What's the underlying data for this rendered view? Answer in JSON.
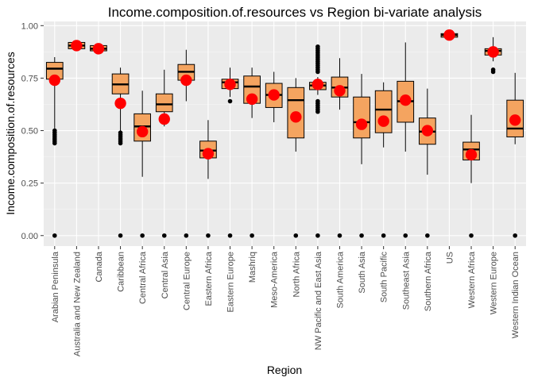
{
  "chart_data": {
    "type": "boxplot",
    "title": "Income.composition.of.resources vs Region bi-variate analysis",
    "xlabel": "Region",
    "ylabel": "Income.composition.of.resources",
    "ylim": [
      -0.05,
      1.02
    ],
    "yticks": [
      0.0,
      0.25,
      0.5,
      0.75,
      1.0
    ],
    "ytick_labels": [
      "0.00",
      "0.25",
      "0.50",
      "0.75",
      "1.00"
    ],
    "grid": true,
    "legend": "none",
    "colors": {
      "panel": "#ebebeb",
      "grid_major": "#ffffff",
      "grid_minor": "#f5f5f5",
      "box_fill": "#f4a460",
      "box_stroke": "#000000",
      "outlier": "#000000",
      "mean_point": "#ff0000",
      "axis_text": "#4d4d4d",
      "title_text": "#000000"
    },
    "categories": [
      "Arabian Peninsula",
      "Australia and New Zealand",
      "Canada",
      "Caribbean",
      "Central Africa",
      "Central Asia",
      "Central Europe",
      "Eastern Africa",
      "Eastern Europe",
      "Mashriq",
      "Meso-America",
      "North Africa",
      "NW Pacific and East Asia",
      "South America",
      "South Asia",
      "South Pacific",
      "Southeast Asia",
      "Southern Africa",
      "US",
      "Western Africa",
      "Western Europe",
      "Western Indian Ocean"
    ],
    "boxes": [
      {
        "q1": 0.745,
        "median": 0.795,
        "q3": 0.825,
        "whisker_low": 0.51,
        "whisker_high": 0.85,
        "mean": 0.74,
        "outliers": [
          0.0,
          0.44,
          0.45,
          0.46,
          0.47,
          0.48,
          0.49,
          0.5
        ]
      },
      {
        "q1": 0.89,
        "median": 0.905,
        "q3": 0.92,
        "whisker_low": 0.88,
        "whisker_high": 0.93,
        "mean": 0.905,
        "outliers": []
      },
      {
        "q1": 0.88,
        "median": 0.89,
        "q3": 0.905,
        "whisker_low": 0.875,
        "whisker_high": 0.91,
        "mean": 0.89,
        "outliers": []
      },
      {
        "q1": 0.675,
        "median": 0.72,
        "q3": 0.77,
        "whisker_low": 0.5,
        "whisker_high": 0.8,
        "mean": 0.63,
        "outliers": [
          0.0,
          0.44,
          0.45,
          0.46,
          0.47,
          0.48,
          0.49
        ]
      },
      {
        "q1": 0.45,
        "median": 0.52,
        "q3": 0.58,
        "whisker_low": 0.28,
        "whisker_high": 0.69,
        "mean": 0.495,
        "outliers": [
          0.0
        ]
      },
      {
        "q1": 0.59,
        "median": 0.625,
        "q3": 0.675,
        "whisker_low": 0.52,
        "whisker_high": 0.79,
        "mean": 0.555,
        "outliers": [
          0.0
        ]
      },
      {
        "q1": 0.74,
        "median": 0.78,
        "q3": 0.815,
        "whisker_low": 0.64,
        "whisker_high": 0.885,
        "mean": 0.74,
        "outliers": [
          0.0
        ]
      },
      {
        "q1": 0.37,
        "median": 0.405,
        "q3": 0.45,
        "whisker_low": 0.27,
        "whisker_high": 0.55,
        "mean": 0.39,
        "outliers": [
          0.0
        ]
      },
      {
        "q1": 0.7,
        "median": 0.73,
        "q3": 0.745,
        "whisker_low": 0.66,
        "whisker_high": 0.8,
        "mean": 0.72,
        "outliers": [
          0.0,
          0.64
        ]
      },
      {
        "q1": 0.63,
        "median": 0.71,
        "q3": 0.76,
        "whisker_low": 0.56,
        "whisker_high": 0.8,
        "mean": 0.65,
        "outliers": [
          0.0
        ]
      },
      {
        "q1": 0.61,
        "median": 0.67,
        "q3": 0.725,
        "whisker_low": 0.54,
        "whisker_high": 0.78,
        "mean": 0.67,
        "outliers": []
      },
      {
        "q1": 0.465,
        "median": 0.645,
        "q3": 0.705,
        "whisker_low": 0.4,
        "whisker_high": 0.75,
        "mean": 0.565,
        "outliers": [
          0.0
        ]
      },
      {
        "q1": 0.695,
        "median": 0.715,
        "q3": 0.73,
        "whisker_low": 0.67,
        "whisker_high": 0.755,
        "mean": 0.72,
        "outliers": [
          0.0,
          0.59,
          0.6,
          0.61,
          0.62,
          0.63,
          0.64,
          0.78,
          0.79,
          0.8,
          0.81,
          0.82,
          0.83,
          0.84,
          0.85,
          0.86,
          0.87,
          0.88,
          0.89,
          0.9
        ]
      },
      {
        "q1": 0.66,
        "median": 0.705,
        "q3": 0.755,
        "whisker_low": 0.6,
        "whisker_high": 0.845,
        "mean": 0.69,
        "outliers": [
          0.0
        ]
      },
      {
        "q1": 0.465,
        "median": 0.54,
        "q3": 0.66,
        "whisker_low": 0.34,
        "whisker_high": 0.77,
        "mean": 0.53,
        "outliers": [
          0.0
        ]
      },
      {
        "q1": 0.49,
        "median": 0.6,
        "q3": 0.69,
        "whisker_low": 0.42,
        "whisker_high": 0.73,
        "mean": 0.545,
        "outliers": [
          0.0
        ]
      },
      {
        "q1": 0.54,
        "median": 0.64,
        "q3": 0.735,
        "whisker_low": 0.4,
        "whisker_high": 0.92,
        "mean": 0.645,
        "outliers": [
          0.0
        ]
      },
      {
        "q1": 0.435,
        "median": 0.495,
        "q3": 0.56,
        "whisker_low": 0.29,
        "whisker_high": 0.7,
        "mean": 0.5,
        "outliers": [
          0.0
        ]
      },
      {
        "q1": 0.945,
        "median": 0.955,
        "q3": 0.962,
        "whisker_low": 0.94,
        "whisker_high": 0.965,
        "mean": 0.955,
        "outliers": []
      },
      {
        "q1": 0.36,
        "median": 0.41,
        "q3": 0.445,
        "whisker_low": 0.25,
        "whisker_high": 0.575,
        "mean": 0.385,
        "outliers": [
          0.0
        ]
      },
      {
        "q1": 0.86,
        "median": 0.88,
        "q3": 0.89,
        "whisker_low": 0.83,
        "whisker_high": 0.945,
        "mean": 0.875,
        "outliers": [
          0.78,
          0.79
        ]
      },
      {
        "q1": 0.47,
        "median": 0.51,
        "q3": 0.645,
        "whisker_low": 0.435,
        "whisker_high": 0.775,
        "mean": 0.55,
        "outliers": [
          0.0
        ]
      }
    ]
  }
}
